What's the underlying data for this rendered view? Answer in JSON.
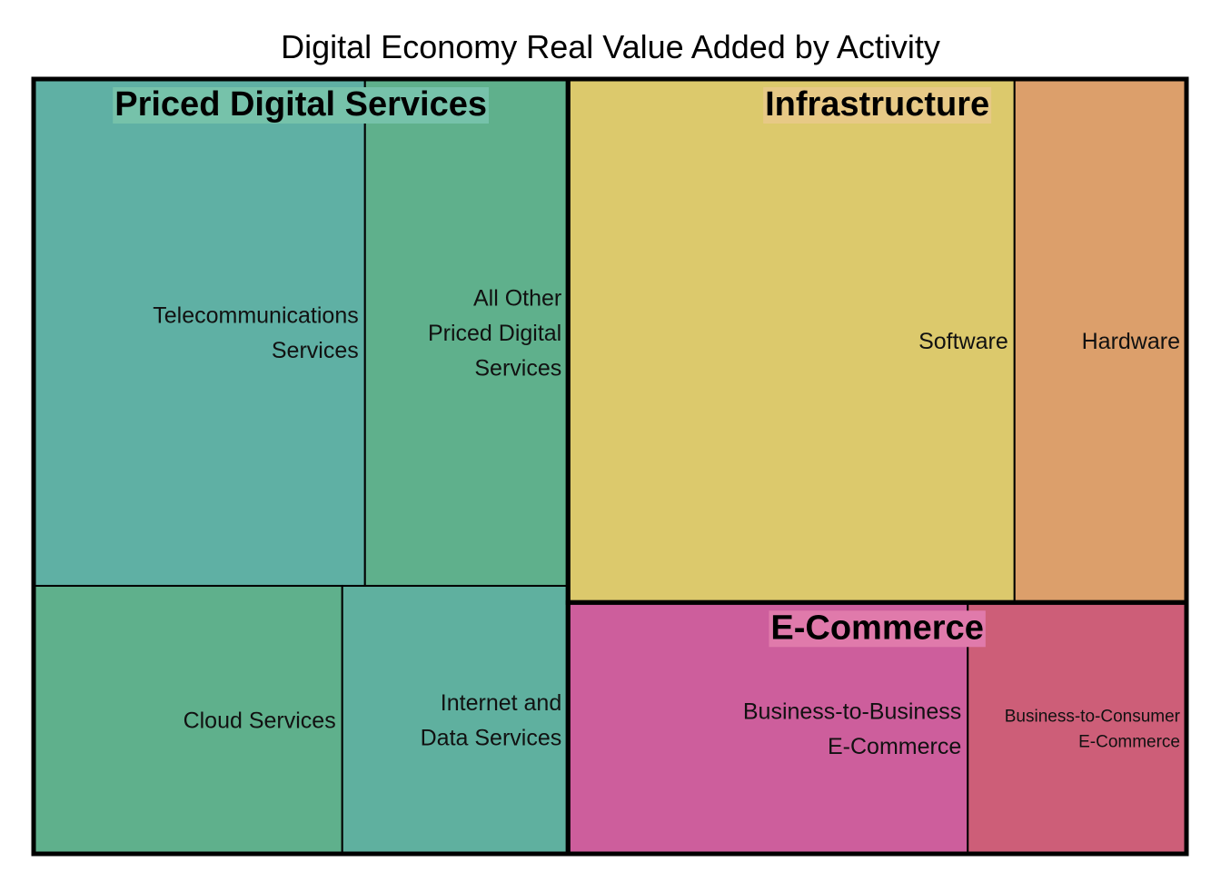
{
  "title": "Digital Economy Real Value Added by Activity",
  "chart_data": {
    "type": "treemap",
    "title": "Digital Economy Real Value Added by Activity",
    "groups": [
      {
        "name": "Priced Digital Services",
        "color": "#5fae95",
        "label_bg": "#76c2aa",
        "children": [
          {
            "name": "Telecommunications Services",
            "value": 200.4,
            "color": "#5fb0a4"
          },
          {
            "name": "All Other Priced Digital Services",
            "value": 122.8,
            "color": "#5fb08c"
          },
          {
            "name": "Cloud Services",
            "value": 98.7,
            "color": "#5fb08c"
          },
          {
            "name": "Internet and Data Services",
            "value": 72.2,
            "color": "#5fb09f"
          }
        ]
      },
      {
        "name": "Infrastructure",
        "color": "#dcc96c",
        "label_bg": "#e7c986",
        "children": [
          {
            "name": "Software",
            "value": 278.9,
            "color": "#dcc96c"
          },
          {
            "name": "Hardware",
            "value": 107.4,
            "color": "#dc9f6b"
          }
        ]
      },
      {
        "name": "E-Commerce",
        "color": "#cd5e9c",
        "label_bg": "#e07aab",
        "children": [
          {
            "name": "Business-to-Business E-Commerce",
            "value": 119.9,
            "color": "#cd5e9c"
          },
          {
            "name": "Business-to-Consumer E-Commerce",
            "value": 65.6,
            "color": "#cd5e78"
          }
        ]
      }
    ]
  }
}
